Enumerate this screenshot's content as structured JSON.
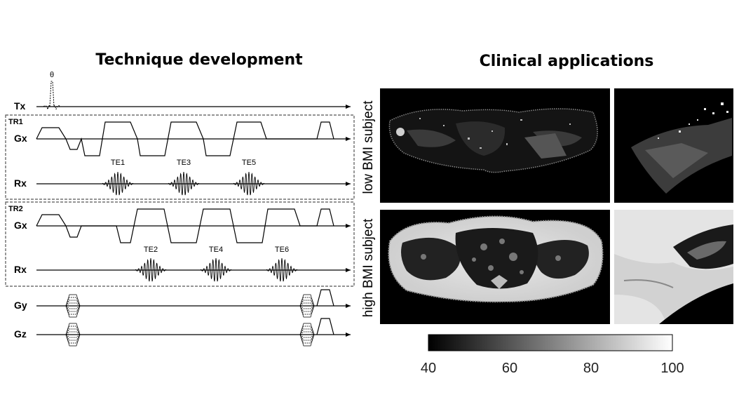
{
  "titles": {
    "left": "Technique development",
    "right": "Clinical applications"
  },
  "sequence": {
    "flip_angle": "θ",
    "rows": {
      "tx": "Tx",
      "gx1": "Gx",
      "rx1": "Rx",
      "gx2": "Gx",
      "rx2": "Rx",
      "gy": "Gy",
      "gz": "Gz"
    },
    "blocks": {
      "tr1": "TR1",
      "tr2": "TR2"
    },
    "echoes_tr1": [
      "TE1",
      "TE3",
      "TE5"
    ],
    "echoes_tr2": [
      "TE2",
      "TE4",
      "TE6"
    ]
  },
  "subjects": {
    "low": "low BMI subject",
    "high": "high BMI subject"
  },
  "colorbar": {
    "ticks": [
      "40",
      "60",
      "80",
      "100"
    ],
    "min": 40,
    "max": 100
  }
}
